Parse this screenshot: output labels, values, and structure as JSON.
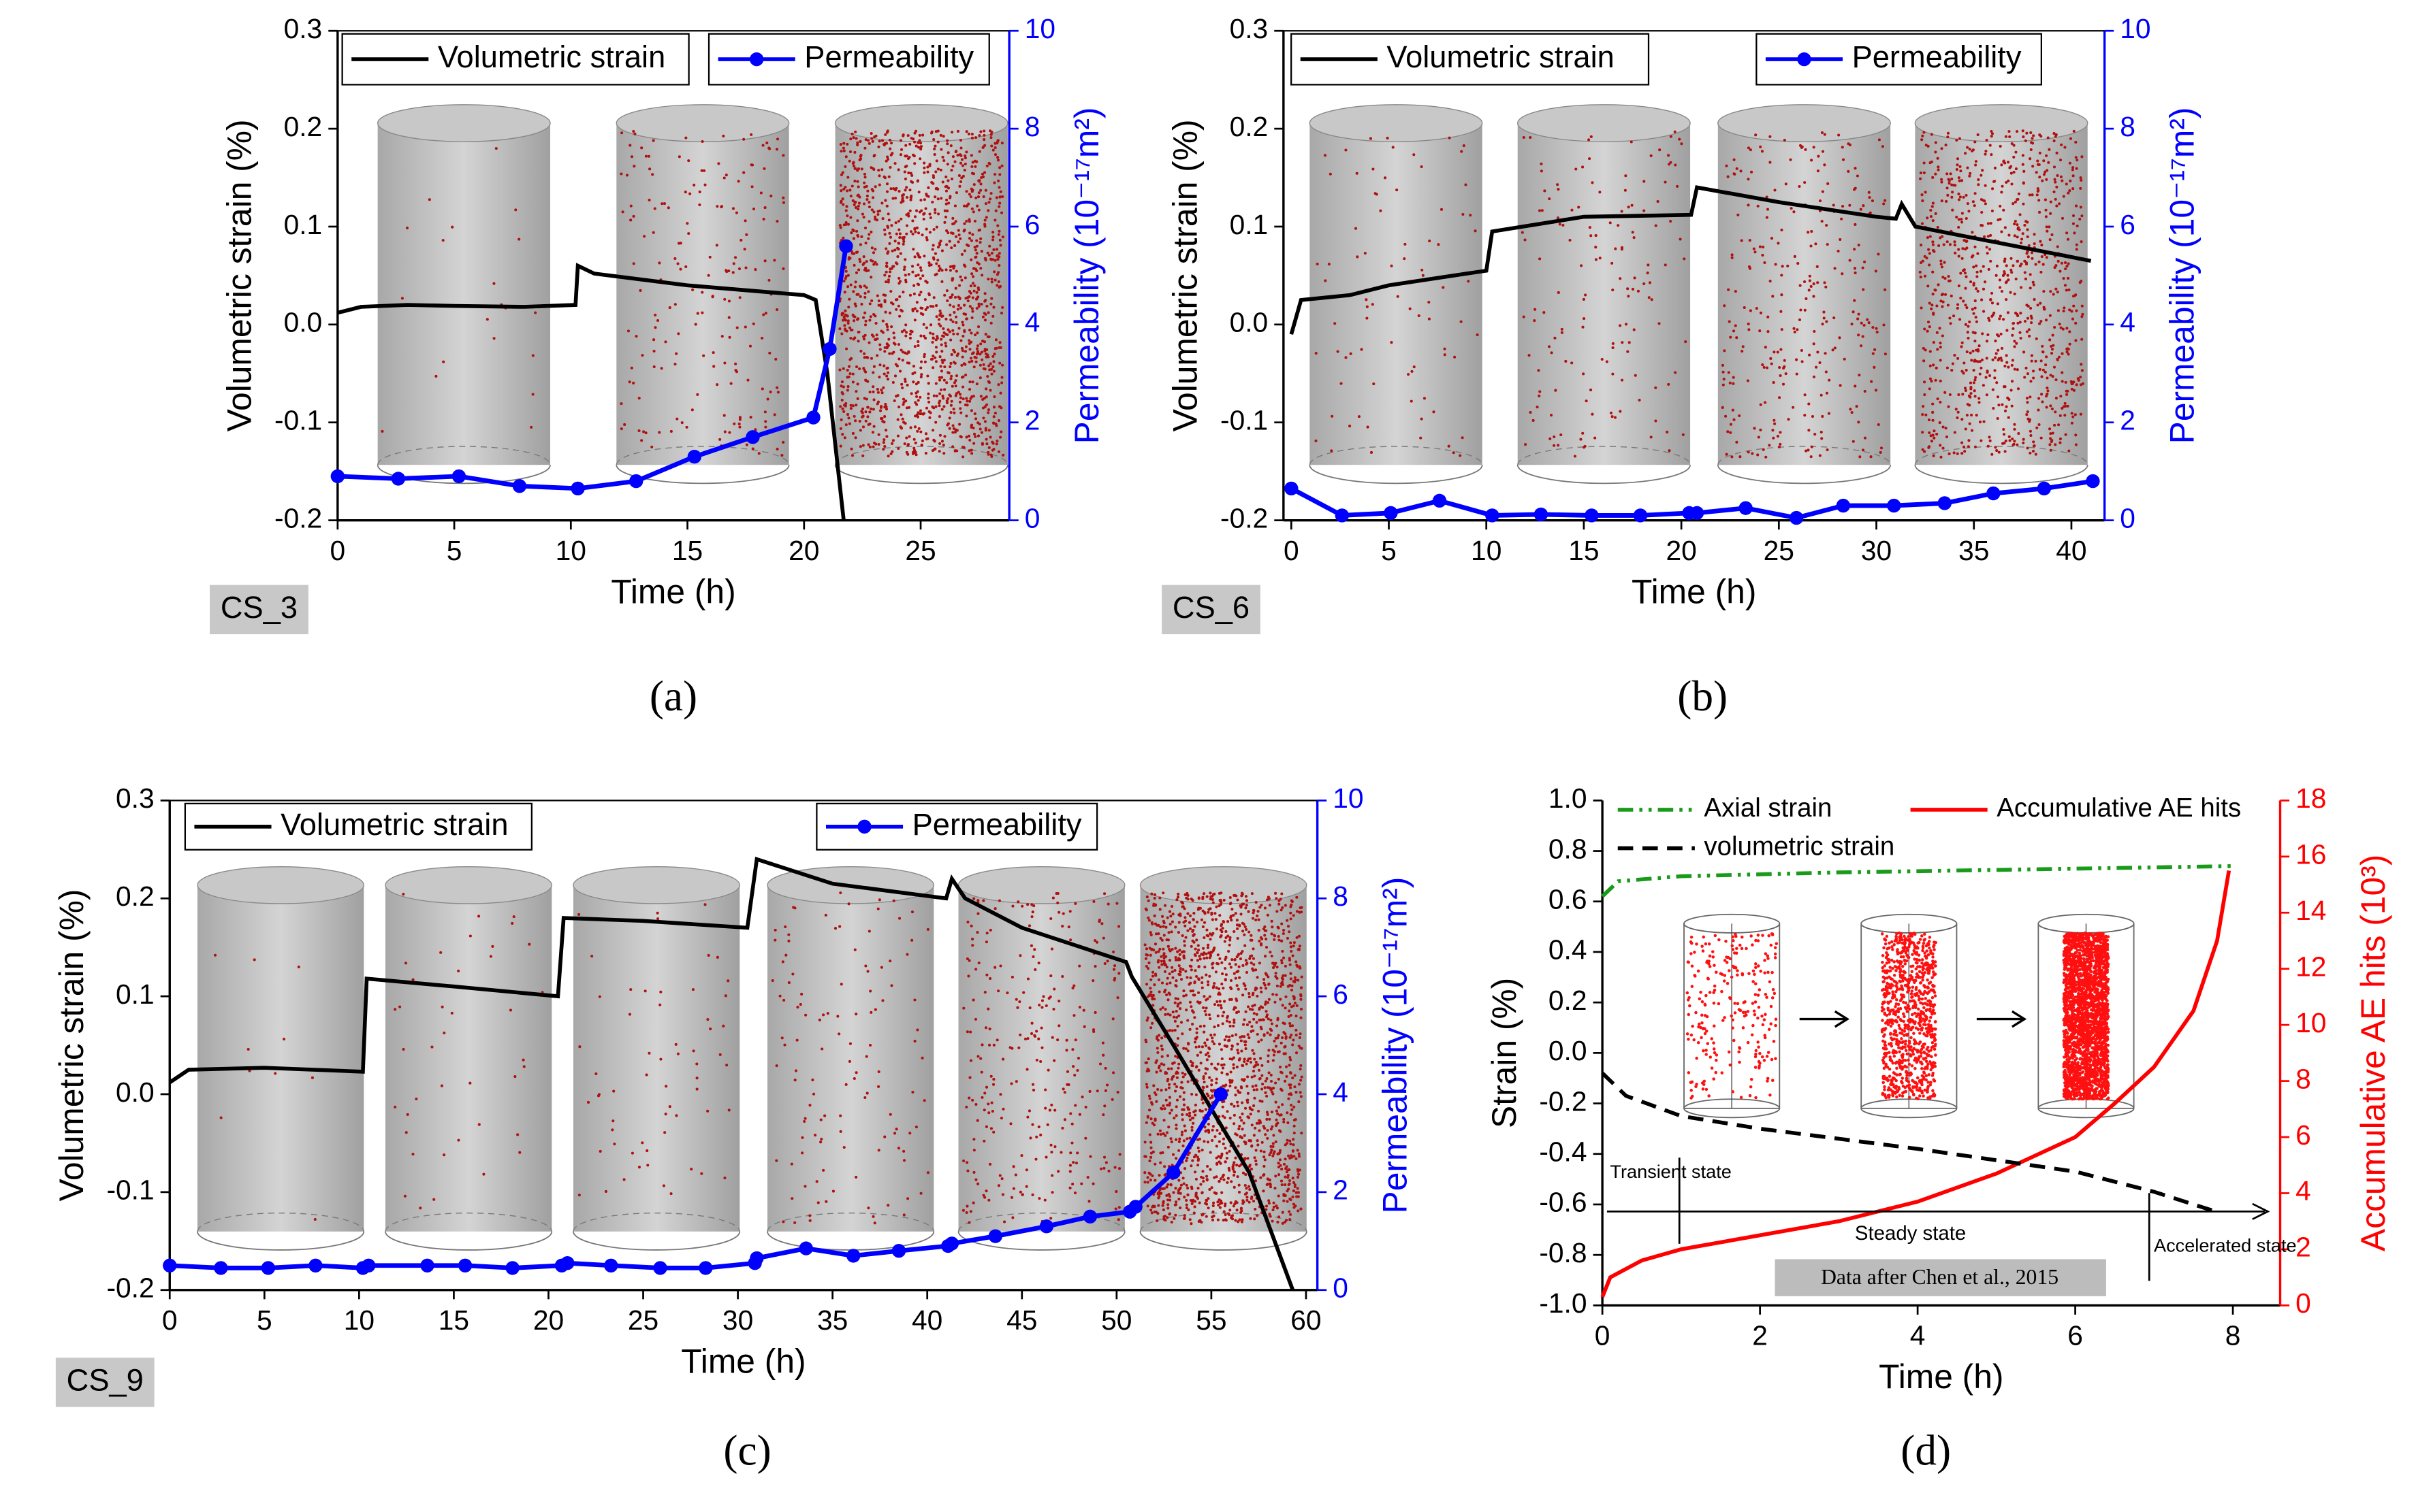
{
  "chart_data": [
    {
      "type": "line",
      "panel": "(a)",
      "sample": "CS_3",
      "xlabel": "Time (h)",
      "ylabel": "Volumetric strain (%)",
      "y2label": "Permeability (10⁻¹⁷m²)",
      "y2color": "#0000ff",
      "xlim": [
        0,
        28.8
      ],
      "xticks": [
        0,
        5,
        10,
        15,
        20,
        25
      ],
      "ylim": [
        -0.2,
        0.3
      ],
      "yticks": [
        -0.2,
        -0.1,
        {
          "value": 0,
          "label": "0.0"
        },
        0.1,
        0.2,
        0.3
      ],
      "y2lim": [
        0,
        10
      ],
      "y2ticks": [
        0,
        2,
        4,
        6,
        8,
        10
      ],
      "series": [
        {
          "name": "Volumetric strain",
          "color": "#000000",
          "axis": "y",
          "linestyle": "solid",
          "marker": "none",
          "x": [
            0,
            1,
            3,
            5,
            8,
            10.2,
            10.3,
            11,
            15,
            20,
            20.5,
            21,
            21.7
          ],
          "values": [
            0.012,
            0.018,
            0.02,
            0.019,
            0.018,
            0.02,
            0.06,
            0.052,
            0.04,
            0.03,
            0.025,
            -0.05,
            -0.2
          ]
        },
        {
          "name": "Permeability",
          "color": "#0000ff",
          "axis": "y2",
          "linestyle": "solid",
          "marker": "circle",
          "x": [
            0,
            2.6,
            5.2,
            7.8,
            10.3,
            12.8,
            15.3,
            17.8,
            20.4,
            21.1,
            21.8
          ],
          "values": [
            0.9,
            0.85,
            0.9,
            0.7,
            0.65,
            0.8,
            1.3,
            1.7,
            2.1,
            3.5,
            5.6
          ]
        }
      ]
    },
    {
      "type": "line",
      "panel": "(b)",
      "sample": "CS_6",
      "xlabel": "Time (h)",
      "ylabel": "Volumetric strain (%)",
      "y2label": "Permeability (10⁻¹⁷m²)",
      "y2color": "#0000ff",
      "xlim": [
        -0.4,
        41.7
      ],
      "xticks": [
        0,
        5,
        10,
        15,
        20,
        25,
        30,
        35,
        40
      ],
      "ylim": [
        -0.2,
        0.3
      ],
      "yticks": [
        -0.2,
        -0.1,
        {
          "value": 0,
          "label": "0.0"
        },
        0.1,
        0.2,
        0.3
      ],
      "y2lim": [
        0,
        10
      ],
      "y2ticks": [
        0,
        2,
        4,
        6,
        8,
        10
      ],
      "series": [
        {
          "name": "Volumetric strain",
          "color": "#000000",
          "axis": "y",
          "linestyle": "solid",
          "marker": "none",
          "x": [
            0,
            0.5,
            3,
            5,
            10,
            10.3,
            15,
            20.5,
            20.8,
            25,
            30,
            31,
            31.3,
            32,
            41
          ],
          "values": [
            -0.01,
            0.025,
            0.03,
            0.04,
            0.055,
            0.095,
            0.11,
            0.112,
            0.14,
            0.125,
            0.11,
            0.108,
            0.123,
            0.1,
            0.065
          ]
        },
        {
          "name": "Permeability",
          "color": "#0000ff",
          "axis": "y2",
          "linestyle": "solid",
          "marker": "circle",
          "x": [
            0,
            2.6,
            5.1,
            7.6,
            10.3,
            12.8,
            15.4,
            17.9,
            20.4,
            20.8,
            23.3,
            25.9,
            28.3,
            30.9,
            33.5,
            36,
            38.6,
            41.1
          ],
          "values": [
            0.65,
            0.1,
            0.15,
            0.4,
            0.1,
            0.12,
            0.1,
            0.1,
            0.15,
            0.15,
            0.25,
            0.05,
            0.3,
            0.3,
            0.35,
            0.55,
            0.65,
            0.8
          ]
        }
      ]
    },
    {
      "type": "line",
      "panel": "(c)",
      "sample": "CS_9",
      "xlabel": "Time (h)",
      "ylabel": "Volumetric strain (%)",
      "y2label": "Permeability (10⁻¹⁷m²)",
      "y2color": "#0000ff",
      "xlim": [
        0,
        60.6
      ],
      "xticks": [
        0,
        5,
        10,
        15,
        20,
        25,
        30,
        35,
        40,
        45,
        50,
        55,
        60
      ],
      "ylim": [
        -0.2,
        0.3
      ],
      "yticks": [
        -0.2,
        -0.1,
        {
          "value": 0,
          "label": "0.0"
        },
        0.1,
        0.2,
        0.3
      ],
      "y2lim": [
        0,
        10
      ],
      "y2ticks": [
        0,
        2,
        4,
        6,
        8,
        10
      ],
      "series": [
        {
          "name": "Volumetric strain",
          "color": "#000000",
          "axis": "y",
          "linestyle": "solid",
          "marker": "none",
          "x": [
            0,
            1,
            5,
            10.2,
            10.4,
            15,
            20.5,
            20.8,
            25,
            30.5,
            31,
            35,
            41,
            41.3,
            42,
            45,
            50.5,
            50.8,
            53,
            57,
            59.3
          ],
          "values": [
            0.012,
            0.025,
            0.027,
            0.023,
            0.118,
            0.11,
            0.1,
            0.18,
            0.177,
            0.17,
            0.24,
            0.215,
            0.2,
            0.22,
            0.2,
            0.17,
            0.135,
            0.12,
            0.05,
            -0.08,
            -0.2
          ]
        },
        {
          "name": "Permeability",
          "color": "#0000ff",
          "axis": "y2",
          "linestyle": "solid",
          "marker": "circle",
          "x": [
            0,
            2.7,
            5.2,
            7.7,
            10.2,
            10.5,
            13.6,
            15.6,
            18.1,
            20.7,
            21,
            23.3,
            25.9,
            28.3,
            30.9,
            31,
            33.6,
            36.1,
            38.5,
            41.1,
            41.3,
            43.6,
            46.3,
            48.6,
            50.7,
            51,
            53,
            55.5
          ],
          "values": [
            0.5,
            0.45,
            0.45,
            0.5,
            0.45,
            0.5,
            0.5,
            0.5,
            0.45,
            0.5,
            0.55,
            0.5,
            0.45,
            0.45,
            0.55,
            0.65,
            0.85,
            0.7,
            0.8,
            0.9,
            0.95,
            1.1,
            1.3,
            1.5,
            1.6,
            1.7,
            2.4,
            4.0
          ]
        }
      ]
    },
    {
      "type": "line",
      "panel": "(d)",
      "xlabel": "Time (h)",
      "ylabel": "Strain (%)",
      "y2label": "Accumulative AE hits (10³)",
      "y2color": "#ff0000",
      "xlim": [
        0,
        8.6
      ],
      "xticks": [
        0,
        2,
        4,
        6,
        8
      ],
      "ylim": [
        -1.0,
        1.0
      ],
      "yticks": [
        {
          "value": -1.0,
          "label": "-1.0"
        },
        -0.8,
        -0.6,
        -0.4,
        -0.2,
        {
          "value": 0,
          "label": "0.0"
        },
        0.2,
        0.4,
        0.6,
        0.8,
        {
          "value": 1.0,
          "label": "1.0"
        }
      ],
      "y2lim": [
        0,
        18
      ],
      "y2ticks": [
        0,
        2,
        4,
        6,
        8,
        10,
        12,
        14,
        16,
        18
      ],
      "series": [
        {
          "name": "Axial strain",
          "color": "#1a9a1a",
          "axis": "y",
          "linestyle": "dashdot",
          "marker": "none",
          "x": [
            0,
            0.2,
            1,
            3,
            6,
            8
          ],
          "values": [
            0.62,
            0.68,
            0.7,
            0.715,
            0.73,
            0.74
          ]
        },
        {
          "name": "Accumulative AE hits",
          "color": "#ff0000",
          "axis": "y2",
          "linestyle": "solid",
          "marker": "none",
          "x": [
            0,
            0.1,
            0.5,
            1,
            2,
            3,
            4,
            5,
            6,
            6.5,
            7,
            7.5,
            7.8,
            7.95
          ],
          "values": [
            0.3,
            1,
            1.6,
            2,
            2.5,
            3,
            3.7,
            4.7,
            6,
            7.2,
            8.5,
            10.5,
            13,
            15.5
          ]
        },
        {
          "name": "volumetric strain",
          "color": "#000000",
          "axis": "y",
          "linestyle": "dashed",
          "marker": "none",
          "x": [
            0,
            0.3,
            1,
            2,
            4,
            6,
            7,
            7.8
          ],
          "values": [
            -0.08,
            -0.17,
            -0.25,
            -0.3,
            -0.38,
            -0.47,
            -0.55,
            -0.63
          ]
        }
      ],
      "annotations": [
        "Transient state",
        "Steady state",
        "Accelerated state",
        "Data after Chen et al., 2015"
      ]
    }
  ]
}
